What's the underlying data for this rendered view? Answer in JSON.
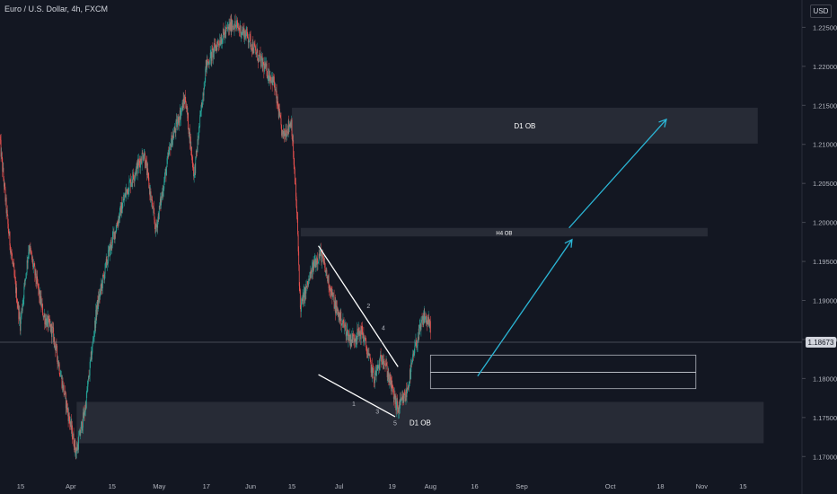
{
  "header": {
    "title": "Euro / U.S. Dollar, 4h, FXCM"
  },
  "axis": {
    "currency": "USD"
  },
  "chart_data": {
    "type": "candlestick",
    "instrument": "Euro / U.S. Dollar",
    "interval": "4h",
    "source": "FXCM",
    "ylim": [
      1.1675,
      1.2285
    ],
    "y_ticks": [
      "1.22500",
      "1.22000",
      "1.21500",
      "1.21000",
      "1.20500",
      "1.20000",
      "1.19500",
      "1.19000",
      "1.18500",
      "1.18000",
      "1.17500",
      "1.17000"
    ],
    "x_ticks": [
      "15",
      "Apr",
      "15",
      "May",
      "17",
      "Jun",
      "15",
      "Jul",
      "19",
      "Aug",
      "16",
      "Sep",
      "Oct",
      "18",
      "Nov",
      "15"
    ],
    "x_range": [
      "2021-03-08",
      "2021-12-05"
    ],
    "last_price": "1.18673",
    "price_path": [
      [
        "2021-03-08",
        1.211
      ],
      [
        "2021-03-11",
        1.199
      ],
      [
        "2021-03-15",
        1.187
      ],
      [
        "2021-03-18",
        1.197
      ],
      [
        "2021-03-23",
        1.188
      ],
      [
        "2021-03-26",
        1.186
      ],
      [
        "2021-03-31",
        1.176
      ],
      [
        "2021-04-03",
        1.1705
      ],
      [
        "2021-04-06",
        1.176
      ],
      [
        "2021-04-10",
        1.189
      ],
      [
        "2021-04-14",
        1.196
      ],
      [
        "2021-04-20",
        1.204
      ],
      [
        "2021-04-26",
        1.209
      ],
      [
        "2021-04-30",
        1.199
      ],
      [
        "2021-05-05",
        1.21
      ],
      [
        "2021-05-10",
        1.216
      ],
      [
        "2021-05-13",
        1.206
      ],
      [
        "2021-05-17",
        1.22
      ],
      [
        "2021-05-21",
        1.223
      ],
      [
        "2021-05-26",
        1.2255
      ],
      [
        "2021-05-31",
        1.224
      ],
      [
        "2021-06-04",
        1.221
      ],
      [
        "2021-06-09",
        1.218
      ],
      [
        "2021-06-12",
        1.211
      ],
      [
        "2021-06-15",
        1.213
      ],
      [
        "2021-06-17",
        1.2
      ],
      [
        "2021-06-18",
        1.189
      ],
      [
        "2021-06-23",
        1.195
      ],
      [
        "2021-06-25",
        1.196
      ],
      [
        "2021-06-30",
        1.189
      ],
      [
        "2021-07-05",
        1.185
      ],
      [
        "2021-07-09",
        1.186
      ],
      [
        "2021-07-13",
        1.18
      ],
      [
        "2021-07-16",
        1.183
      ],
      [
        "2021-07-21",
        1.176
      ],
      [
        "2021-07-24",
        1.178
      ],
      [
        "2021-07-27",
        1.184
      ],
      [
        "2021-07-30",
        1.188
      ],
      [
        "2021-08-01",
        1.1867
      ]
    ],
    "zones": [
      {
        "label": "D1 OB",
        "from": "2021-06-15",
        "to": "2021-11-20",
        "y_top": 1.2147,
        "y_bottom": 1.2101,
        "style": "filled"
      },
      {
        "label": "H4 OB",
        "from": "2021-06-18",
        "to": "2021-11-03",
        "y_top": 1.1993,
        "y_bottom": 1.1982,
        "style": "filled"
      },
      {
        "label": "D1 OB",
        "from": "2021-04-03",
        "to": "2021-11-22",
        "y_top": 1.177,
        "y_bottom": 1.1717,
        "style": "filled"
      },
      {
        "label": "",
        "from": "2021-08-01",
        "to": "2021-10-30",
        "y_top": 1.183,
        "y_bottom": 1.1787,
        "style": "outline"
      }
    ],
    "h_lines": [
      {
        "from": "2021-08-01",
        "to": "2021-10-30",
        "y": 1.1808
      }
    ],
    "wedge_lines": [
      {
        "from": [
          "2021-06-24",
          1.197
        ],
        "to": [
          "2021-07-21",
          1.1815
        ]
      },
      {
        "from": [
          "2021-06-24",
          1.1805
        ],
        "to": [
          "2021-07-20",
          1.1751
        ]
      }
    ],
    "wave_labels": [
      {
        "label": "1",
        "date": "2021-07-06",
        "y": 1.1765
      },
      {
        "label": "2",
        "date": "2021-07-11",
        "y": 1.189
      },
      {
        "label": "3",
        "date": "2021-07-14",
        "y": 1.1755
      },
      {
        "label": "4",
        "date": "2021-07-16",
        "y": 1.1862
      },
      {
        "label": "5",
        "date": "2021-07-20",
        "y": 1.174
      }
    ],
    "arrows": [
      {
        "from": [
          "2021-08-17",
          1.1803
        ],
        "to": [
          "2021-09-18",
          1.1978
        ]
      },
      {
        "from": [
          "2021-09-17",
          1.1993
        ],
        "to": [
          "2021-10-20",
          1.2132
        ]
      }
    ],
    "colors": {
      "up": "#26a69a",
      "down": "#ef5350",
      "zone": "#2a2e39",
      "arrow": "#2bb6d6",
      "line": "#ffffff"
    }
  }
}
